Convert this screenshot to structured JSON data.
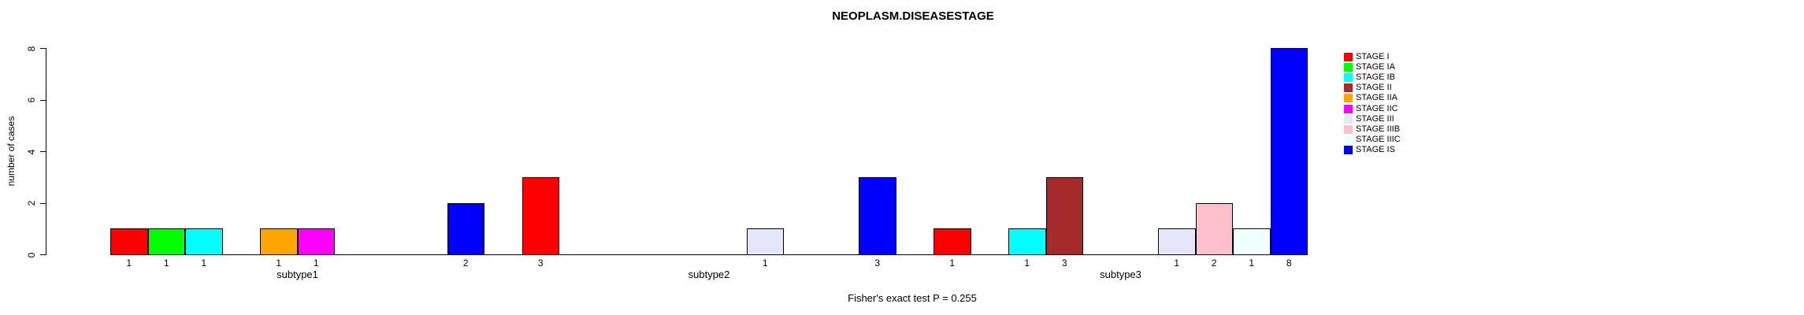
{
  "title": "NEOPLASM.DISEASESTAGE",
  "chart_data": {
    "type": "bar",
    "title": "NEOPLASM.DISEASESTAGE",
    "xlabel": "",
    "ylabel": "number of cases",
    "ylim": [
      0,
      8
    ],
    "yticks": [
      0,
      2,
      4,
      6,
      8
    ],
    "grid": false,
    "legend_position": "right",
    "bar_value_labels_shown": true,
    "categories": [
      "subtype1",
      "subtype2",
      "subtype3"
    ],
    "series": [
      {
        "name": "STAGE I",
        "color": "#FF0000",
        "values": [
          1,
          3,
          1
        ]
      },
      {
        "name": "STAGE IA",
        "color": "#00FF00",
        "values": [
          1,
          0,
          0
        ]
      },
      {
        "name": "STAGE IB",
        "color": "#00FFFF",
        "values": [
          1,
          0,
          1
        ]
      },
      {
        "name": "STAGE II",
        "color": "#A52A2A",
        "values": [
          0,
          0,
          3
        ]
      },
      {
        "name": "STAGE IIA",
        "color": "#FFA500",
        "values": [
          1,
          0,
          0
        ]
      },
      {
        "name": "STAGE IIC",
        "color": "#FF00FF",
        "values": [
          1,
          0,
          0
        ]
      },
      {
        "name": "STAGE III",
        "color": "#E6E6FA",
        "values": [
          0,
          1,
          1
        ]
      },
      {
        "name": "STAGE IIIB",
        "color": "#FFC0CB",
        "values": [
          0,
          0,
          2
        ]
      },
      {
        "name": "STAGE IIIC",
        "color": "#F0FFFF",
        "values": [
          0,
          0,
          1
        ]
      },
      {
        "name": "STAGE IS",
        "color": "#0000FF",
        "values": [
          2,
          3,
          8
        ]
      }
    ],
    "annotation": "Fisher's exact test P = 0.255",
    "axis_color": "#000000",
    "bar_border_color": "#000000"
  }
}
